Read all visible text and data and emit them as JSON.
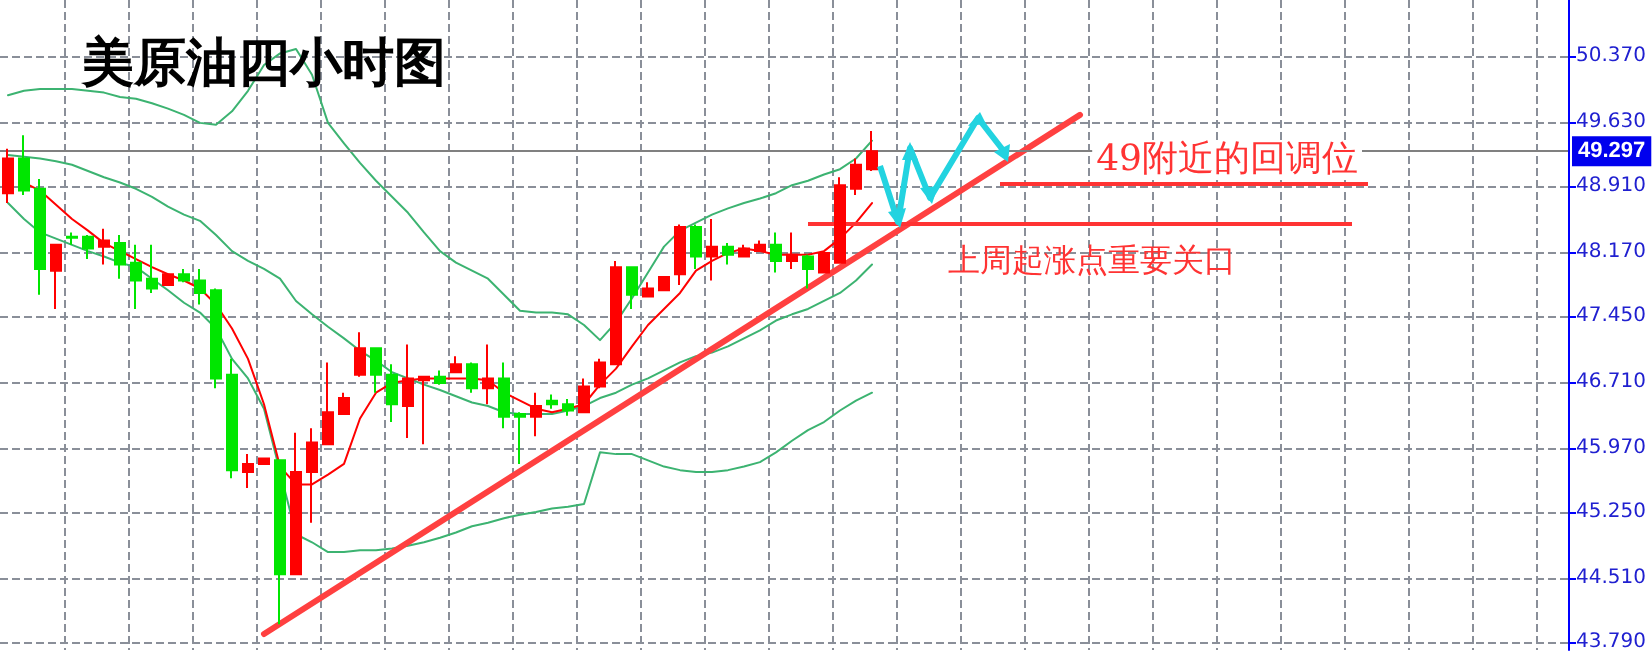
{
  "chart_data": {
    "type": "candlestick",
    "title": "美原油四小时图",
    "categories": [
      null,
      null,
      null,
      null,
      null,
      null,
      null,
      null,
      null,
      null,
      null,
      null,
      null,
      null,
      null,
      null,
      null,
      null,
      null,
      null,
      null,
      null,
      null,
      null,
      null,
      null,
      null,
      null,
      null,
      null,
      null,
      null,
      null,
      null,
      null,
      null,
      null,
      null,
      null,
      null,
      null,
      null,
      null,
      null,
      null,
      null,
      null,
      null,
      null,
      null,
      null,
      null,
      null,
      null,
      null,
      null,
      null,
      null,
      null,
      null,
      null,
      null,
      null,
      null,
      null,
      null,
      null,
      null,
      null,
      null,
      null,
      null,
      null,
      null,
      null,
      null,
      null,
      null,
      null,
      null,
      null,
      null,
      null,
      null,
      null,
      null,
      null,
      null,
      null,
      null,
      null,
      null,
      null,
      null,
      null,
      null,
      null,
      null
    ],
    "ohlc": [
      [
        48.83,
        49.33,
        48.72,
        49.22
      ],
      [
        49.22,
        49.48,
        48.81,
        48.86
      ],
      [
        48.88,
        48.99,
        47.69,
        47.98
      ],
      [
        47.96,
        48.25,
        47.53,
        48.25
      ],
      [
        48.34,
        48.39,
        48.25,
        48.33
      ],
      [
        48.34,
        48.36,
        48.09,
        48.21
      ],
      [
        48.23,
        48.43,
        48.03,
        48.3
      ],
      [
        48.27,
        48.36,
        47.87,
        48.03
      ],
      [
        48.05,
        48.25,
        47.53,
        47.85
      ],
      [
        47.87,
        48.25,
        47.71,
        47.76
      ],
      [
        47.8,
        47.92,
        47.8,
        47.92
      ],
      [
        47.92,
        47.98,
        47.83,
        47.85
      ],
      [
        47.85,
        47.98,
        47.58,
        47.71
      ],
      [
        47.74,
        47.76,
        46.64,
        46.75
      ],
      [
        46.79,
        46.97,
        45.63,
        45.72
      ],
      [
        45.7,
        45.9,
        45.52,
        45.79
      ],
      [
        45.79,
        45.85,
        45.79,
        45.85
      ],
      [
        45.83,
        45.83,
        43.99,
        44.55
      ],
      [
        44.55,
        46.14,
        44.55,
        45.7
      ],
      [
        45.7,
        46.19,
        45.13,
        46.03
      ],
      [
        46.01,
        46.93,
        46.01,
        46.37
      ],
      [
        46.35,
        46.59,
        46.35,
        46.53
      ],
      [
        46.79,
        47.27,
        46.77,
        47.09
      ],
      [
        47.09,
        47.09,
        46.59,
        46.79
      ],
      [
        46.79,
        46.91,
        46.26,
        46.46
      ],
      [
        46.44,
        47.13,
        46.08,
        46.75
      ],
      [
        46.73,
        46.77,
        46.01,
        46.77
      ],
      [
        46.77,
        46.84,
        46.68,
        46.7
      ],
      [
        46.82,
        47.0,
        46.82,
        46.91
      ],
      [
        46.91,
        46.93,
        46.59,
        46.64
      ],
      [
        46.64,
        47.13,
        46.46,
        46.75
      ],
      [
        46.75,
        46.93,
        46.19,
        46.32
      ],
      [
        46.35,
        46.37,
        45.79,
        46.32
      ],
      [
        46.32,
        46.59,
        46.1,
        46.44
      ],
      [
        46.5,
        46.57,
        46.41,
        46.46
      ],
      [
        46.46,
        46.52,
        46.33,
        46.39
      ],
      [
        46.37,
        46.75,
        46.37,
        46.66
      ],
      [
        46.66,
        46.97,
        46.64,
        46.93
      ],
      [
        46.91,
        48.07,
        46.91,
        48.0
      ],
      [
        48.0,
        48.0,
        47.53,
        47.69
      ],
      [
        47.67,
        47.83,
        47.67,
        47.76
      ],
      [
        47.74,
        47.89,
        47.74,
        47.89
      ],
      [
        47.92,
        48.48,
        47.8,
        48.45
      ],
      [
        48.45,
        48.48,
        47.98,
        48.12
      ],
      [
        48.12,
        48.54,
        47.85,
        48.23
      ],
      [
        48.23,
        48.27,
        48.03,
        48.14
      ],
      [
        48.12,
        48.25,
        48.12,
        48.21
      ],
      [
        48.18,
        48.3,
        48.18,
        48.25
      ],
      [
        48.25,
        48.39,
        47.94,
        48.07
      ],
      [
        48.07,
        48.39,
        47.98,
        48.14
      ],
      [
        48.12,
        48.14,
        47.76,
        47.98
      ],
      [
        47.94,
        48.16,
        47.94,
        48.16
      ],
      [
        48.05,
        49.01,
        48.05,
        48.92
      ],
      [
        48.88,
        49.22,
        48.81,
        49.15
      ],
      [
        49.1,
        49.53,
        49.08,
        49.3
      ],
      null,
      null,
      null,
      null,
      null,
      null,
      null,
      null,
      null,
      null,
      null,
      null,
      null,
      null,
      null,
      null,
      null,
      null,
      null,
      null,
      null,
      null,
      null,
      null,
      null,
      null,
      null,
      null,
      null,
      null,
      null,
      null,
      null,
      null,
      null,
      null,
      null,
      null,
      null,
      null,
      null,
      null,
      null
    ],
    "colors": [
      "#ff0000",
      "#00e600",
      "#00e600",
      "#ff0000",
      "#00e600",
      "#00e600",
      "#ff0000",
      "#00e600",
      "#00e600",
      "#00e600",
      "#ff0000",
      "#00e600",
      "#00e600",
      "#00e600",
      "#00e600",
      "#ff0000",
      "#ff0000",
      "#00e600",
      "#ff0000",
      "#ff0000",
      "#ff0000",
      "#ff0000",
      "#ff0000",
      "#00e600",
      "#00e600",
      "#ff0000",
      "#ff0000",
      "#00e600",
      "#ff0000",
      "#00e600",
      "#ff0000",
      "#00e600",
      "#00e600",
      "#ff0000",
      "#00e600",
      "#00e600",
      "#ff0000",
      "#ff0000",
      "#ff0000",
      "#00e600",
      "#ff0000",
      "#ff0000",
      "#ff0000",
      "#00e600",
      "#ff0000",
      "#00e600",
      "#ff0000",
      "#ff0000",
      "#00e600",
      "#ff0000",
      "#00e600",
      "#ff0000",
      "#ff0000",
      "#ff0000",
      "#ff0000",
      null,
      null,
      null,
      null,
      null,
      null,
      null,
      null,
      null,
      null,
      null,
      null,
      null,
      null,
      null,
      null,
      null,
      null,
      null,
      null,
      null,
      null,
      null,
      null,
      null,
      null,
      null,
      null,
      null,
      null,
      null,
      null,
      null,
      null,
      null,
      null,
      null,
      null,
      null,
      null,
      null,
      null,
      null
    ],
    "series": [
      {
        "type": "line",
        "color": "#3cb371",
        "values": [
          49.93,
          49.98,
          50.0,
          50.0,
          50.0,
          49.98,
          49.96,
          49.91,
          49.89,
          49.84,
          49.78,
          49.71,
          49.62,
          49.6,
          49.75,
          49.98,
          50.27,
          50.4,
          50.45,
          50.16,
          49.62,
          49.39,
          49.17,
          48.97,
          48.79,
          48.61,
          48.39,
          48.18,
          48.05,
          47.96,
          47.87,
          47.69,
          47.51,
          47.49,
          47.49,
          47.47,
          47.35,
          47.18,
          47.38,
          47.65,
          47.94,
          48.23,
          48.41,
          48.5,
          48.59,
          48.66,
          48.72,
          48.77,
          48.83,
          48.92,
          48.97,
          49.04,
          49.1,
          49.22,
          49.42,
          null,
          null,
          null,
          null,
          null,
          null,
          null,
          null,
          null,
          null,
          null,
          null,
          null,
          null,
          null,
          null,
          null,
          null,
          null,
          null,
          null,
          null,
          null,
          null,
          null,
          null,
          null,
          null,
          null,
          null,
          null,
          null,
          null,
          null,
          null,
          null,
          null,
          null,
          null,
          null,
          null,
          null,
          null
        ]
      },
      {
        "type": "line",
        "color": "#3cb371",
        "values": [
          49.26,
          49.24,
          49.22,
          49.19,
          49.15,
          49.08,
          49.01,
          48.95,
          48.88,
          48.79,
          48.68,
          48.59,
          48.52,
          48.36,
          48.18,
          48.07,
          47.98,
          47.87,
          47.62,
          47.47,
          47.33,
          47.2,
          47.06,
          46.95,
          46.82,
          46.75,
          46.68,
          46.62,
          46.55,
          46.48,
          46.44,
          46.37,
          46.35,
          46.35,
          46.35,
          46.39,
          46.44,
          46.53,
          46.59,
          46.68,
          46.75,
          46.84,
          46.93,
          47.0,
          47.04,
          47.11,
          47.2,
          47.29,
          47.4,
          47.47,
          47.53,
          47.62,
          47.71,
          47.85,
          48.03,
          null,
          null,
          null,
          null,
          null,
          null,
          null,
          null,
          null,
          null,
          null,
          null,
          null,
          null,
          null,
          null,
          null,
          null,
          null,
          null,
          null,
          null,
          null,
          null,
          null,
          null,
          null,
          null,
          null,
          null,
          null,
          null,
          null,
          null,
          null,
          null,
          null,
          null,
          null,
          null,
          null,
          null,
          null
        ]
      },
      {
        "type": "line",
        "color": "#3cb371",
        "values": [
          48.72,
          48.54,
          48.39,
          48.32,
          48.25,
          48.18,
          48.12,
          48.05,
          48.0,
          47.87,
          47.74,
          47.6,
          47.49,
          47.31,
          46.97,
          46.75,
          46.41,
          null,
          45.0,
          44.91,
          44.8,
          44.8,
          44.82,
          44.82,
          44.84,
          44.87,
          44.91,
          44.96,
          45.02,
          45.09,
          45.13,
          45.18,
          45.22,
          45.25,
          45.29,
          45.31,
          45.34,
          45.92,
          45.9,
          45.9,
          45.83,
          45.76,
          45.72,
          45.7,
          45.7,
          45.72,
          45.76,
          45.81,
          45.92,
          46.05,
          46.17,
          46.26,
          46.39,
          46.5,
          46.59,
          null,
          null,
          null,
          null,
          null,
          null,
          null,
          null,
          null,
          null,
          null,
          null,
          null,
          null,
          null,
          null,
          null,
          null,
          null,
          null,
          null,
          null,
          null,
          null,
          null,
          null,
          null,
          null,
          null,
          null,
          null,
          null,
          null,
          null,
          null,
          null,
          null,
          null,
          null,
          null,
          null,
          null,
          null
        ]
      },
      {
        "type": "line",
        "color": "#ff0000",
        "values": [
          null,
          48.95,
          48.86,
          48.7,
          48.54,
          48.41,
          48.27,
          48.18,
          48.09,
          48.0,
          47.92,
          47.85,
          47.76,
          47.58,
          47.31,
          46.97,
          46.46,
          45.76,
          45.56,
          45.56,
          45.67,
          45.79,
          46.3,
          46.59,
          46.7,
          46.73,
          46.75,
          46.75,
          46.75,
          46.75,
          46.73,
          46.59,
          46.5,
          46.41,
          46.37,
          46.41,
          46.46,
          46.68,
          46.86,
          47.11,
          47.35,
          47.53,
          47.71,
          47.96,
          48.07,
          48.16,
          48.21,
          48.18,
          48.14,
          48.14,
          48.14,
          48.18,
          48.32,
          48.5,
          48.72,
          null,
          null,
          null,
          null,
          null,
          null,
          null,
          null,
          null,
          null,
          null,
          null,
          null,
          null,
          null,
          null,
          null,
          null,
          null,
          null,
          null,
          null,
          null,
          null,
          null,
          null,
          null,
          null,
          null,
          null,
          null,
          null,
          null,
          null,
          null,
          null,
          null,
          null,
          null,
          null,
          null,
          null,
          null
        ]
      },
      {
        "type": "line",
        "color": "#ff4040",
        "values": [
          null,
          null,
          null,
          null,
          null,
          null,
          null,
          null,
          null,
          null,
          null,
          null,
          null,
          null,
          null,
          null,
          43.88,
          null,
          null,
          null,
          null,
          null,
          null,
          null,
          null,
          null,
          null,
          null,
          null,
          null,
          null,
          null,
          null,
          null,
          null,
          null,
          null,
          null,
          null,
          null,
          null,
          null,
          null,
          null,
          null,
          null,
          null,
          null,
          null,
          null,
          null,
          null,
          null,
          null,
          null,
          null,
          null,
          null,
          null,
          null,
          null,
          null,
          null,
          null,
          null,
          null,
          null,
          49.71,
          null,
          null,
          null,
          null,
          null,
          null,
          null,
          null,
          null,
          null,
          null,
          null,
          null,
          null,
          null,
          null,
          null,
          null,
          null,
          null,
          null,
          null,
          null,
          null,
          null,
          null,
          null,
          null,
          null,
          null
        ]
      }
    ],
    "ylim": [
      43.7,
      51.0
    ],
    "yticks": [
      {
        "value": 43.79,
        "label": "43.790"
      },
      {
        "value": 44.51,
        "label": "44.510"
      },
      {
        "value": 45.25,
        "label": "45.250"
      },
      {
        "value": 45.97,
        "label": "45.970"
      },
      {
        "value": 46.71,
        "label": "46.710"
      },
      {
        "value": 47.45,
        "label": "47.450"
      },
      {
        "value": 48.17,
        "label": "48.170"
      },
      {
        "value": 48.91,
        "label": "48.910"
      },
      {
        "value": 49.63,
        "label": "49.630"
      },
      {
        "value": 50.37,
        "label": "50.370"
      }
    ],
    "ref_lines": [
      {
        "axis": "y",
        "value": 49.297,
        "label": "49.297",
        "color": "#808080"
      },
      {
        "axis": "y",
        "value": 48.95,
        "label": "49附近的回调位",
        "color": "#ff3333"
      },
      {
        "axis": "y",
        "value": 48.48,
        "label": "上周起涨点重要关口",
        "color": "#ff3333"
      }
    ],
    "grid": true,
    "tick_labels": "y"
  }
}
